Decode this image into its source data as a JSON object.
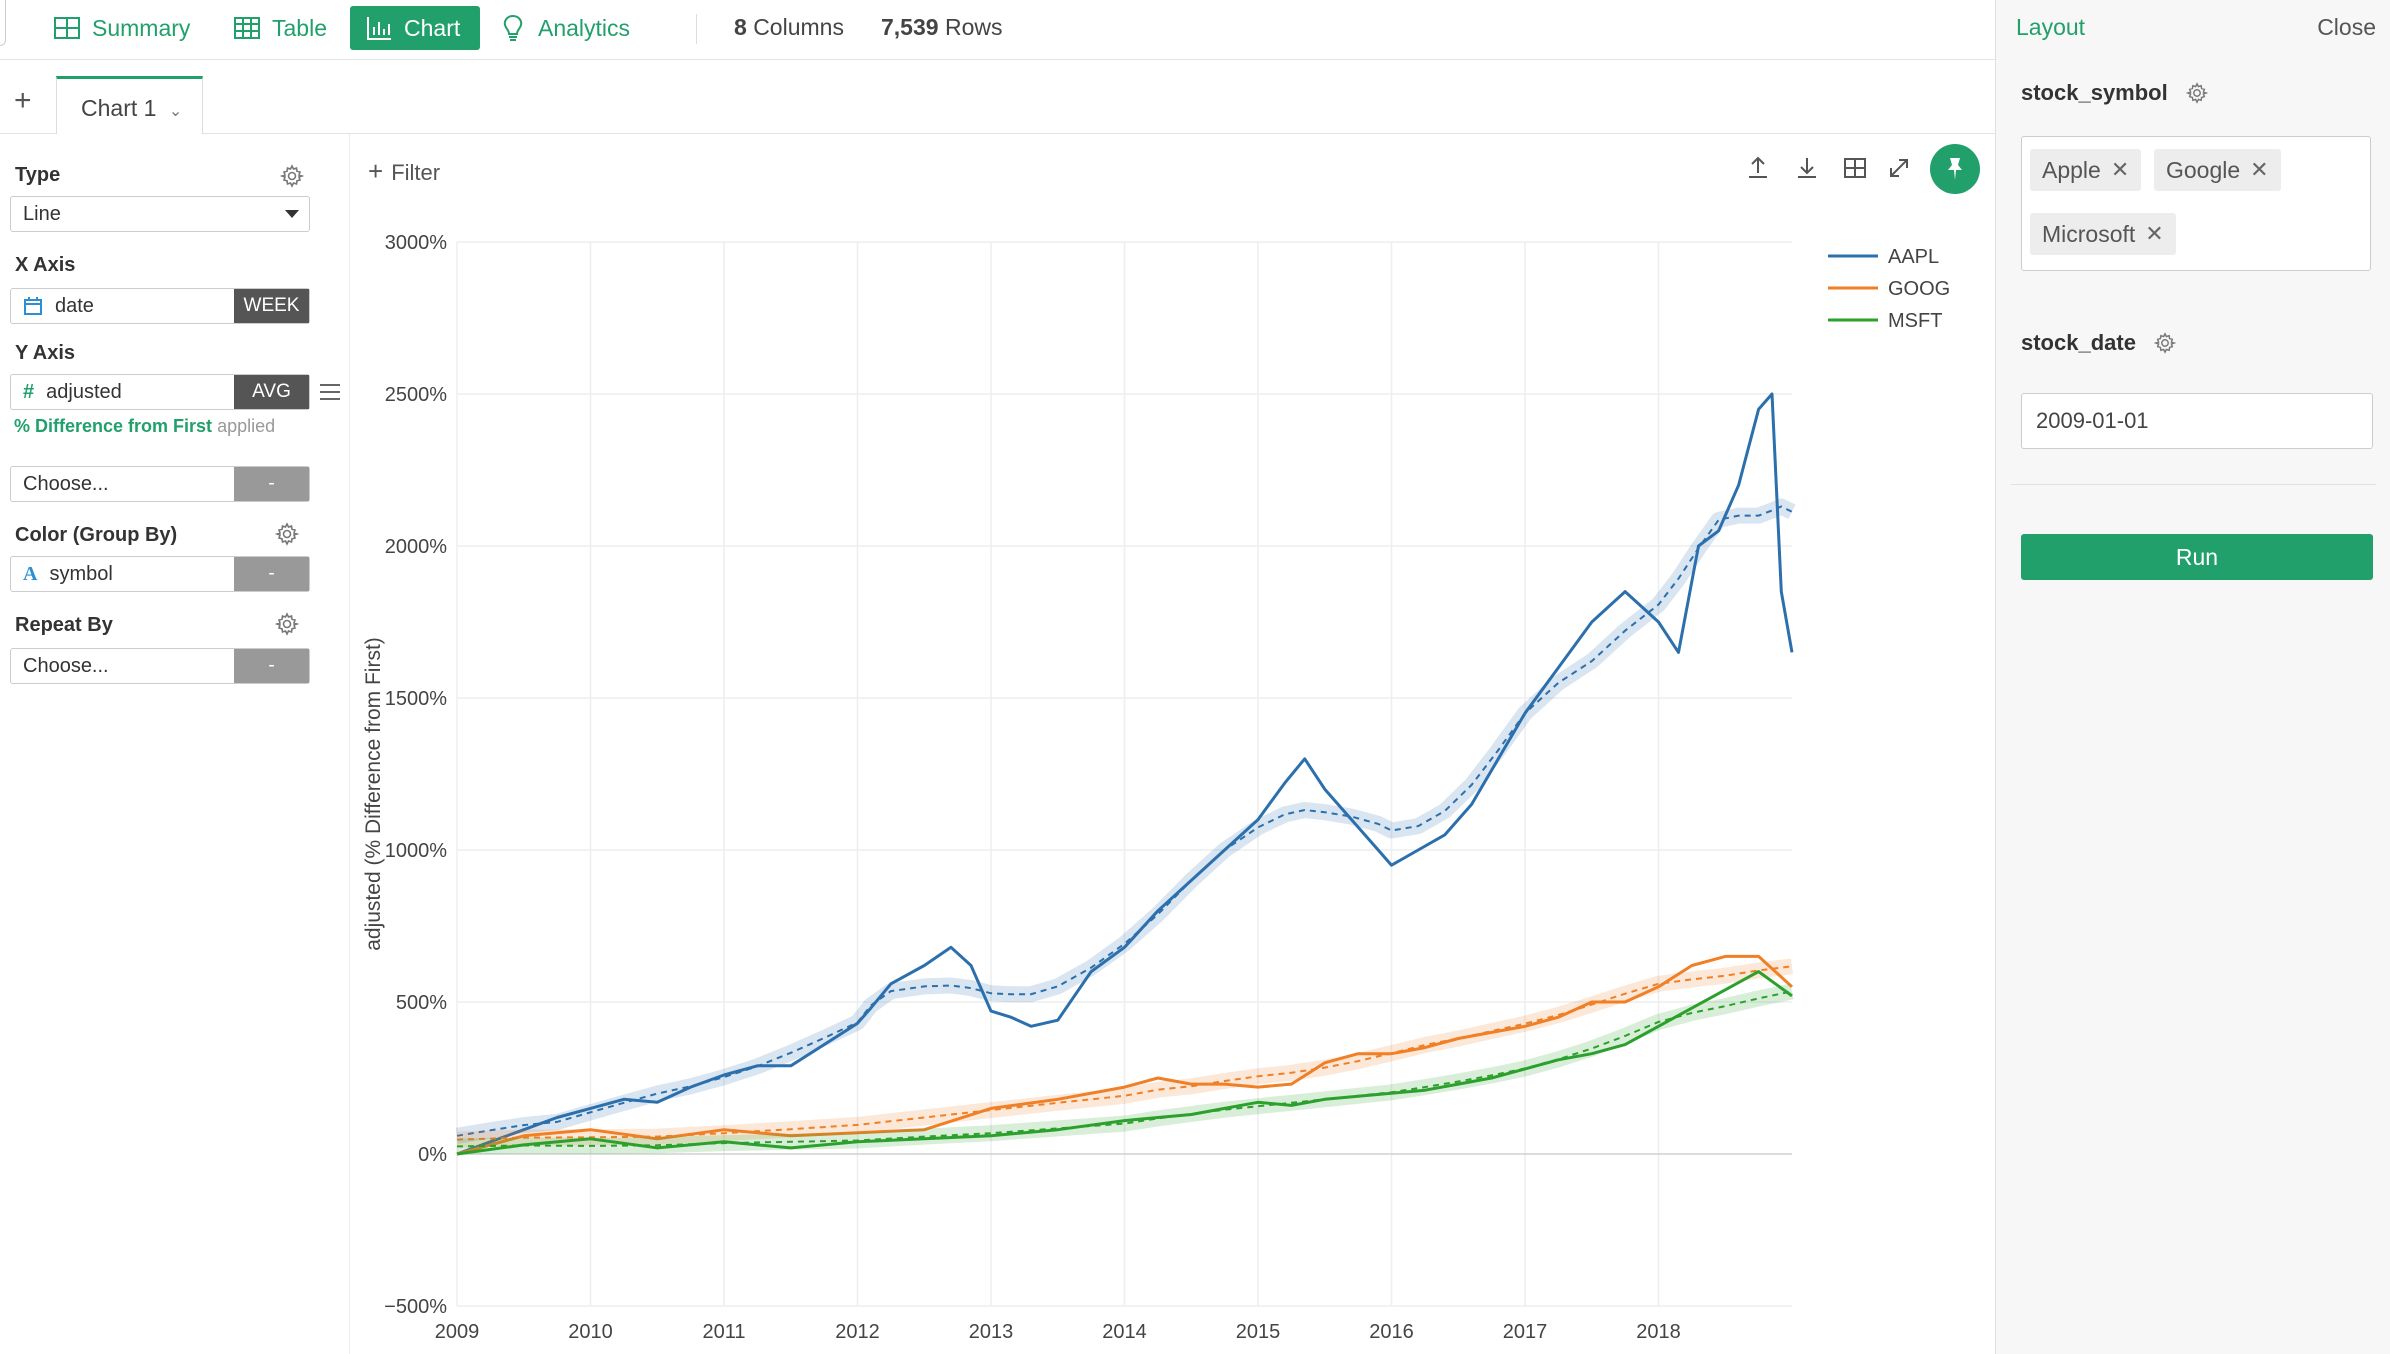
{
  "nav": {
    "items": [
      {
        "label": "Summary",
        "icon": "summary-grid-icon"
      },
      {
        "label": "Table",
        "icon": "table-icon"
      },
      {
        "label": "Chart",
        "icon": "bar-chart-icon",
        "active": true
      },
      {
        "label": "Analytics",
        "icon": "lightbulb-icon"
      }
    ],
    "columns_count": "8",
    "columns_label": "Columns",
    "rows_count": "7,539",
    "rows_label": "Rows"
  },
  "tabs": {
    "add_label": "+",
    "current": "Chart 1"
  },
  "config": {
    "type_label": "Type",
    "type_value": "Line",
    "xaxis_label": "X Axis",
    "xaxis_field": "date",
    "xaxis_agg": "WEEK",
    "yaxis_label": "Y Axis",
    "yaxis_field": "adjusted",
    "yaxis_agg": "AVG",
    "applied_highlight": "% Difference from First",
    "applied_suffix": "applied",
    "yaxis2_placeholder": "Choose...",
    "yaxis2_btn": "-",
    "color_label": "Color (Group By)",
    "color_field": "symbol",
    "color_btn": "-",
    "repeat_label": "Repeat By",
    "repeat_placeholder": "Choose...",
    "repeat_btn": "-"
  },
  "chart_toolbar": {
    "filter_label": "Filter"
  },
  "chart_data": {
    "type": "line",
    "ylabel": "adjusted (% Difference from First)",
    "xlabel": "",
    "ylim": [
      -500,
      3000
    ],
    "yticks": [
      -500,
      0,
      500,
      1000,
      1500,
      2000,
      2500,
      3000
    ],
    "ytick_labels": [
      "−500%",
      "0%",
      "500%",
      "1000%",
      "1500%",
      "2000%",
      "2500%",
      "3000%"
    ],
    "xlim": [
      2009,
      2019
    ],
    "xticks": [
      2009,
      2010,
      2011,
      2012,
      2013,
      2014,
      2015,
      2016,
      2017,
      2018
    ],
    "xtick_labels": [
      "2009",
      "2010",
      "2011",
      "2012",
      "2013",
      "2014",
      "2015",
      "2016",
      "2017",
      "2018"
    ],
    "grid": true,
    "legend_position": "top-right",
    "trend_lines": true,
    "series": [
      {
        "name": "AAPL",
        "color": "#2c6fad",
        "x": [
          2009.0,
          2009.25,
          2009.5,
          2009.75,
          2010.0,
          2010.25,
          2010.5,
          2010.75,
          2011.0,
          2011.25,
          2011.5,
          2011.75,
          2012.0,
          2012.1,
          2012.25,
          2012.5,
          2012.7,
          2012.85,
          2013.0,
          2013.15,
          2013.3,
          2013.5,
          2013.75,
          2014.0,
          2014.25,
          2014.5,
          2014.75,
          2015.0,
          2015.2,
          2015.35,
          2015.5,
          2015.7,
          2015.9,
          2016.0,
          2016.2,
          2016.4,
          2016.6,
          2016.8,
          2017.0,
          2017.25,
          2017.5,
          2017.75,
          2018.0,
          2018.15,
          2018.3,
          2018.45,
          2018.6,
          2018.75,
          2018.85,
          2018.92,
          2019.0
        ],
        "y": [
          0,
          40,
          80,
          120,
          150,
          180,
          170,
          220,
          260,
          290,
          290,
          360,
          430,
          480,
          560,
          620,
          680,
          620,
          470,
          450,
          420,
          440,
          600,
          680,
          800,
          900,
          1000,
          1100,
          1220,
          1300,
          1200,
          1100,
          1000,
          950,
          1000,
          1050,
          1150,
          1300,
          1450,
          1600,
          1750,
          1850,
          1750,
          1650,
          2000,
          2050,
          2200,
          2450,
          2500,
          1850,
          1650
        ]
      },
      {
        "name": "GOOG",
        "color": "#f07f26",
        "x": [
          2009.0,
          2009.5,
          2010.0,
          2010.5,
          2011.0,
          2011.5,
          2012.0,
          2012.5,
          2013.0,
          2013.5,
          2014.0,
          2014.25,
          2014.5,
          2014.75,
          2015.0,
          2015.25,
          2015.5,
          2015.75,
          2016.0,
          2016.25,
          2016.5,
          2016.75,
          2017.0,
          2017.25,
          2017.5,
          2017.75,
          2018.0,
          2018.25,
          2018.5,
          2018.75,
          2019.0
        ],
        "y": [
          0,
          60,
          80,
          50,
          80,
          60,
          70,
          80,
          150,
          180,
          220,
          250,
          230,
          230,
          220,
          230,
          300,
          330,
          330,
          350,
          380,
          400,
          420,
          450,
          500,
          500,
          550,
          620,
          650,
          650,
          550
        ]
      },
      {
        "name": "MSFT",
        "color": "#2ca02c",
        "x": [
          2009.0,
          2009.5,
          2010.0,
          2010.5,
          2011.0,
          2011.5,
          2012.0,
          2012.5,
          2013.0,
          2013.5,
          2014.0,
          2014.25,
          2014.5,
          2014.75,
          2015.0,
          2015.25,
          2015.5,
          2015.75,
          2016.0,
          2016.25,
          2016.5,
          2016.75,
          2017.0,
          2017.25,
          2017.5,
          2017.75,
          2018.0,
          2018.25,
          2018.5,
          2018.75,
          2019.0
        ],
        "y": [
          0,
          30,
          50,
          20,
          40,
          20,
          40,
          50,
          60,
          80,
          110,
          120,
          130,
          150,
          170,
          160,
          180,
          190,
          200,
          210,
          230,
          250,
          280,
          310,
          330,
          360,
          420,
          480,
          540,
          600,
          520
        ]
      }
    ]
  },
  "layout_panel": {
    "title": "Layout",
    "close_label": "Close",
    "symbol_label": "stock_symbol",
    "tags": [
      "Apple",
      "Google",
      "Microsoft"
    ],
    "tag_remove_label": "✕",
    "date_label": "stock_date",
    "date_value": "2009-01-01",
    "run_label": "Run"
  }
}
